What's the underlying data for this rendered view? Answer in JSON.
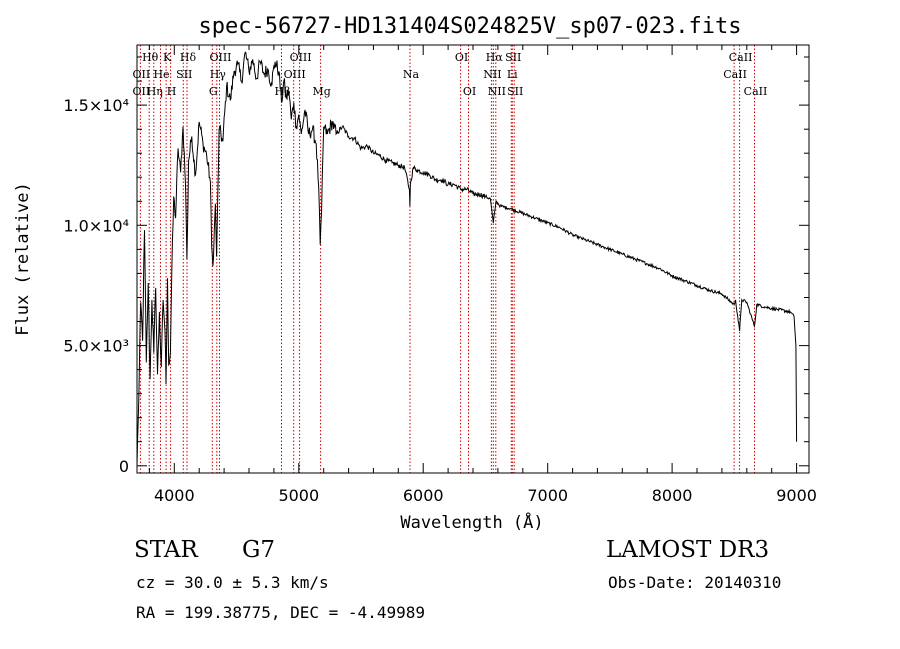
{
  "chart_data": {
    "type": "line",
    "title": "spec-56727-HD131404S024825V_sp07-023.fits",
    "xlabel": "Wavelength (Å)",
    "ylabel": "Flux (relative)",
    "xlim": [
      3700,
      9100
    ],
    "ylim": [
      -300,
      17500
    ],
    "xticks": [
      {
        "value": 4000,
        "label": "4000"
      },
      {
        "value": 5000,
        "label": "5000"
      },
      {
        "value": 6000,
        "label": "6000"
      },
      {
        "value": 7000,
        "label": "7000"
      },
      {
        "value": 8000,
        "label": "8000"
      },
      {
        "value": 9000,
        "label": "9000"
      }
    ],
    "yticks": [
      {
        "value": 0,
        "label": "0"
      },
      {
        "value": 5000,
        "label": "5.0×10³"
      },
      {
        "value": 10000,
        "label": "1.0×10⁴"
      },
      {
        "value": 15000,
        "label": "1.5×10⁴"
      }
    ],
    "series": [
      {
        "name": "spectrum",
        "x": [
          3700,
          3715,
          3730,
          3745,
          3760,
          3775,
          3790,
          3805,
          3820,
          3835,
          3850,
          3865,
          3880,
          3895,
          3910,
          3925,
          3933,
          3945,
          3955,
          3968,
          3980,
          3995,
          4010,
          4030,
          4050,
          4070,
          4090,
          4101,
          4115,
          4140,
          4170,
          4200,
          4230,
          4260,
          4290,
          4300,
          4310,
          4330,
          4340,
          4360,
          4390,
          4420,
          4450,
          4480,
          4510,
          4540,
          4570,
          4600,
          4630,
          4660,
          4690,
          4720,
          4750,
          4780,
          4810,
          4840,
          4861,
          4880,
          4900,
          4920,
          4940,
          4960,
          4980,
          5000,
          5020,
          5050,
          5080,
          5110,
          5140,
          5160,
          5172,
          5183,
          5200,
          5230,
          5270,
          5300,
          5350,
          5400,
          5450,
          5500,
          5550,
          5600,
          5650,
          5700,
          5750,
          5800,
          5850,
          5889,
          5893,
          5897,
          5920,
          5950,
          6000,
          6050,
          6100,
          6150,
          6200,
          6250,
          6300,
          6350,
          6400,
          6450,
          6500,
          6540,
          6563,
          6585,
          6620,
          6700,
          6800,
          6900,
          7000,
          7100,
          7200,
          7300,
          7400,
          7500,
          7600,
          7700,
          7800,
          7900,
          8000,
          8100,
          8200,
          8300,
          8400,
          8498,
          8510,
          8542,
          8560,
          8600,
          8662,
          8680,
          8750,
          8850,
          8950,
          8980,
          8995,
          9000
        ],
        "y": [
          0,
          3000,
          6800,
          5200,
          9800,
          4300,
          7600,
          3600,
          6900,
          4700,
          7400,
          3800,
          6400,
          4100,
          6900,
          5600,
          3400,
          7800,
          4200,
          4700,
          8100,
          11200,
          10300,
          13200,
          12200,
          14100,
          11700,
          8600,
          12700,
          13700,
          12100,
          14300,
          13400,
          12900,
          11800,
          9100,
          8300,
          10900,
          8700,
          14000,
          13500,
          15800,
          15200,
          16400,
          16700,
          16000,
          17200,
          16400,
          16900,
          16100,
          16800,
          16300,
          16500,
          15900,
          16800,
          16400,
          15100,
          16000,
          15300,
          15600,
          14400,
          15100,
          14100,
          14600,
          13800,
          14800,
          13800,
          14000,
          13400,
          11600,
          9200,
          10600,
          14100,
          13800,
          14300,
          13800,
          14100,
          13700,
          13600,
          13200,
          13300,
          13000,
          12900,
          12700,
          12600,
          12500,
          12400,
          11500,
          10800,
          11700,
          12400,
          12300,
          12200,
          12100,
          11900,
          11900,
          11700,
          11700,
          11500,
          11500,
          11300,
          11300,
          11200,
          11100,
          10100,
          11000,
          10800,
          10700,
          10500,
          10300,
          10100,
          9900,
          9600,
          9400,
          9200,
          9000,
          8800,
          8600,
          8400,
          8200,
          7900,
          7700,
          7500,
          7300,
          7150,
          6700,
          6900,
          5600,
          6900,
          6800,
          5800,
          6700,
          6600,
          6500,
          6400,
          6200,
          5000,
          1000
        ]
      }
    ],
    "lines": [
      {
        "name": "Hθ",
        "wl": 3798,
        "row": 1
      },
      {
        "name": "OII",
        "wl": 3727,
        "row": 2
      },
      {
        "name": "OII",
        "wl": 3727,
        "row": 3
      },
      {
        "name": "Hη",
        "wl": 3835,
        "row": 3
      },
      {
        "name": "He",
        "wl": 3889,
        "row": 2
      },
      {
        "name": "K",
        "wl": 3934,
        "row": 1
      },
      {
        "name": "SII",
        "wl": 4072,
        "row": 2
      },
      {
        "name": "H",
        "wl": 3970,
        "row": 3
      },
      {
        "name": "Hδ",
        "wl": 4102,
        "row": 1
      },
      {
        "name": "OIII",
        "wl": 4363,
        "row": 1
      },
      {
        "name": "Hγ",
        "wl": 4341,
        "row": 2
      },
      {
        "name": "G",
        "wl": 4305,
        "row": 3
      },
      {
        "name": "OIII",
        "wl": 5007,
        "row": 1
      },
      {
        "name": "OIII",
        "wl": 4959,
        "row": 2
      },
      {
        "name": "Hβ",
        "wl": 4861,
        "row": 3
      },
      {
        "name": "Mg",
        "wl": 5175,
        "row": 3
      },
      {
        "name": "Na",
        "wl": 5894,
        "row": 2
      },
      {
        "name": "OI",
        "wl": 6300,
        "row": 1
      },
      {
        "name": "OI",
        "wl": 6364,
        "row": 3
      },
      {
        "name": "Hα",
        "wl": 6563,
        "row": 1
      },
      {
        "name": "NII",
        "wl": 6548,
        "row": 2
      },
      {
        "name": "NII",
        "wl": 6583,
        "row": 3
      },
      {
        "name": "SII",
        "wl": 6716,
        "row": 1
      },
      {
        "name": "Li",
        "wl": 6708,
        "row": 2
      },
      {
        "name": "SII",
        "wl": 6731,
        "row": 3
      },
      {
        "name": "CaII",
        "wl": 8542,
        "row": 1
      },
      {
        "name": "CaII",
        "wl": 8498,
        "row": 2
      },
      {
        "name": "CaII",
        "wl": 8662,
        "row": 3
      }
    ]
  },
  "info": {
    "object_class": "STAR",
    "subclass": "G7",
    "redshift_line": "cz = 30.0 ± 5.3 km/s",
    "radec_line": "RA = 199.38775, DEC =  -4.49989",
    "survey": "LAMOST DR3",
    "obs_date_line": "Obs-Date: 20140310"
  },
  "colors": {
    "spectrum": "#000000",
    "line_marker": "#cc0000",
    "axes": "#000000"
  }
}
